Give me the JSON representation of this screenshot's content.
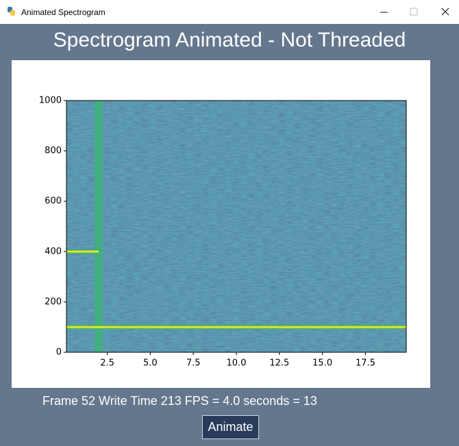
{
  "window": {
    "title": "Animated Spectrogram"
  },
  "header": {
    "title": "Spectrogram Animated - Not Threaded"
  },
  "chart_data": {
    "type": "spectrogram",
    "xlim": [
      0.13,
      19.87
    ],
    "xticks": [
      2.5,
      {
        "value": 5,
        "label": "5.0"
      },
      7.5,
      {
        "value": 10,
        "label": "10.0"
      },
      12.5,
      {
        "value": 15,
        "label": "15.0"
      },
      17.5
    ],
    "ylim": [
      0,
      1000
    ],
    "yticks": [
      0,
      200,
      400,
      600,
      800,
      1000
    ],
    "background_color": "#2d6b8c",
    "line_color": "#e4e51e",
    "glow_color": "#3db37a",
    "tones": [
      {
        "y": 100,
        "x_end": 19.87
      },
      {
        "y": 400,
        "x_end": 2
      }
    ],
    "impulse_x": 2
  },
  "status": {
    "text": "Frame 52 Write Time 213 FPS = 4.0 seconds = 13"
  },
  "button": {
    "label": "Animate"
  }
}
